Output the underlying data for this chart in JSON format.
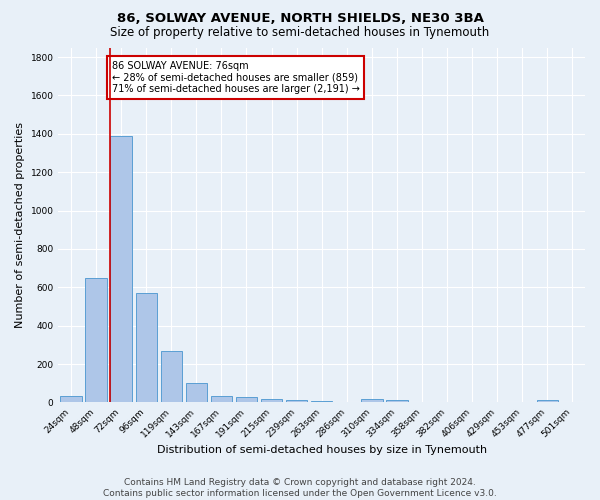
{
  "title": "86, SOLWAY AVENUE, NORTH SHIELDS, NE30 3BA",
  "subtitle": "Size of property relative to semi-detached houses in Tynemouth",
  "xlabel": "Distribution of semi-detached houses by size in Tynemouth",
  "ylabel": "Number of semi-detached properties",
  "footer": "Contains HM Land Registry data © Crown copyright and database right 2024.\nContains public sector information licensed under the Open Government Licence v3.0.",
  "categories": [
    "24sqm",
    "48sqm",
    "72sqm",
    "96sqm",
    "119sqm",
    "143sqm",
    "167sqm",
    "191sqm",
    "215sqm",
    "239sqm",
    "263sqm",
    "286sqm",
    "310sqm",
    "334sqm",
    "358sqm",
    "382sqm",
    "406sqm",
    "429sqm",
    "453sqm",
    "477sqm",
    "501sqm"
  ],
  "values": [
    35,
    650,
    1390,
    570,
    270,
    103,
    35,
    27,
    20,
    12,
    9,
    0,
    18,
    15,
    0,
    0,
    0,
    0,
    0,
    15,
    0
  ],
  "bar_color": "#aec6e8",
  "bar_edgecolor": "#5a9fd4",
  "property_bin_index": 2,
  "vline_color": "#cc0000",
  "annotation_text": "86 SOLWAY AVENUE: 76sqm\n← 28% of semi-detached houses are smaller (859)\n71% of semi-detached houses are larger (2,191) →",
  "annotation_box_color": "#ffffff",
  "annotation_box_edgecolor": "#cc0000",
  "ylim": [
    0,
    1850
  ],
  "background_color": "#e8f0f8",
  "grid_color": "#ffffff",
  "title_fontsize": 9.5,
  "subtitle_fontsize": 8.5,
  "axis_label_fontsize": 8,
  "tick_fontsize": 6.5,
  "annotation_fontsize": 7,
  "footer_fontsize": 6.5
}
